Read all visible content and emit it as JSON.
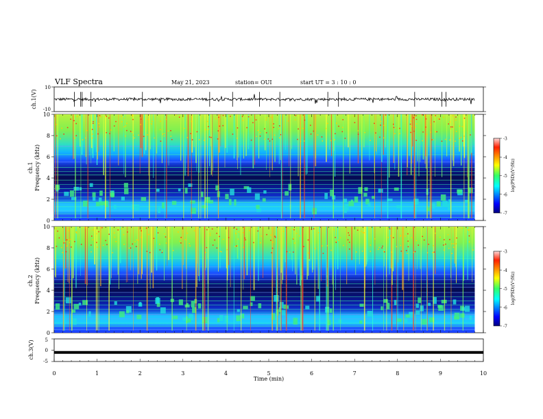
{
  "header": {
    "title": "VLF Spectra",
    "date": "May 21, 2023",
    "station": "station= OUI",
    "start": "start  UT  =  3 : 10 : 0"
  },
  "colorbars": [
    {
      "label": "log(PSD)(V²/Hz)",
      "ticks": [
        "-3",
        "-4",
        "-5",
        "-6",
        "-7"
      ]
    },
    {
      "label": "log(PSD)(V²/Hz)",
      "ticks": [
        "-3",
        "-4",
        "-5",
        "-6",
        "-7"
      ]
    }
  ],
  "chart_data": [
    {
      "type": "line",
      "name": "ch1-waveform",
      "ylabel": "ch.1(V)",
      "ylim": [
        -10,
        10
      ],
      "yticks": [
        "10",
        "-10"
      ],
      "xlim": [
        0,
        10
      ],
      "note_baseline": 0
    },
    {
      "type": "heatmap",
      "name": "ch1-spectrogram",
      "ylabel": "ch.1\nFrequency (kHz)",
      "ylabel_lines": [
        "ch.1",
        "Frequency  (kHz)"
      ],
      "ylim": [
        0,
        10
      ],
      "yticks": [
        "0",
        "2",
        "4",
        "6",
        "8",
        "10"
      ],
      "xlim": [
        0,
        10
      ],
      "data_end_min": 9.8,
      "color_scale": {
        "min": -7,
        "max": -3,
        "colormap": "jet"
      }
    },
    {
      "type": "heatmap",
      "name": "ch2-spectrogram",
      "ylabel_lines": [
        "ch.2",
        "Frequency  (kHz)"
      ],
      "ylim": [
        0,
        10
      ],
      "yticks": [
        "0",
        "2",
        "4",
        "6",
        "8",
        "10"
      ],
      "xlim": [
        0,
        10
      ],
      "data_end_min": 9.8,
      "color_scale": {
        "min": -7,
        "max": -3,
        "colormap": "jet"
      }
    },
    {
      "type": "line",
      "name": "ch3-waveform",
      "ylabel": "ch.3(V)",
      "ylim": [
        -5,
        5
      ],
      "yticks": [
        "5",
        "0",
        "-5"
      ],
      "xlim": [
        0,
        10
      ],
      "xlabel": "Time  (min)",
      "xticks": [
        "0",
        "1",
        "2",
        "3",
        "4",
        "5",
        "6",
        "7",
        "8",
        "9",
        "10"
      ],
      "constant_value": -1
    }
  ]
}
